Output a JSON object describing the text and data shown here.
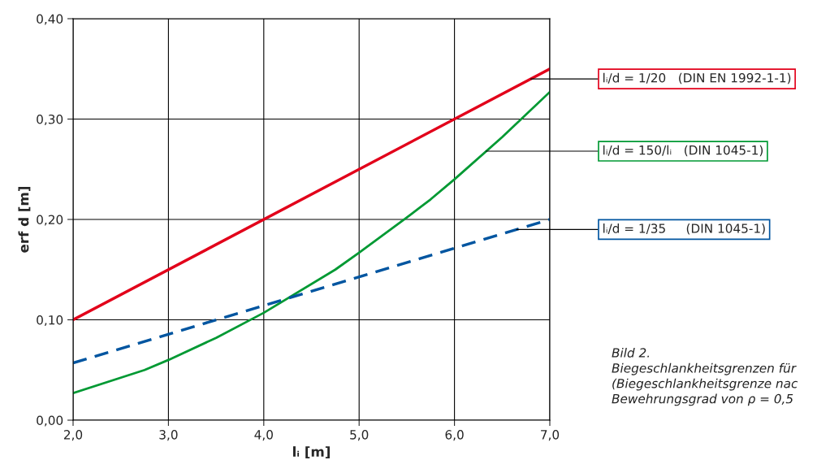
{
  "chart_data": {
    "type": "line",
    "xlabel": "lᵢ [m]",
    "ylabel": "erf d [m]",
    "xlim": [
      2.0,
      7.0
    ],
    "ylim": [
      0.0,
      0.4
    ],
    "xticks": [
      {
        "value": 2,
        "label": "2,0"
      },
      {
        "value": 3,
        "label": "3,0"
      },
      {
        "value": 4,
        "label": "4,0"
      },
      {
        "value": 5,
        "label": "5,0"
      },
      {
        "value": 6,
        "label": "6,0"
      },
      {
        "value": 7,
        "label": "7,0"
      }
    ],
    "yticks": [
      {
        "value": 0,
        "label": "0,00"
      },
      {
        "value": 0.1,
        "label": "0,10"
      },
      {
        "value": 0.2,
        "label": "0,20"
      },
      {
        "value": 0.3,
        "label": "0,30"
      },
      {
        "value": 0.4,
        "label": "0,40"
      }
    ],
    "grid": true,
    "series": [
      {
        "color": "#e2001a",
        "line_style": "solid",
        "x": [
          2.0,
          7.0
        ],
        "values": [
          0.1,
          0.35
        ]
      },
      {
        "color": "#009933",
        "line_style": "solid",
        "x": [
          2.0,
          2.75,
          3.0,
          3.5,
          4.0,
          4.75,
          5.0,
          5.5,
          5.75,
          6.0,
          6.5,
          7.0
        ],
        "values": [
          0.027,
          0.05,
          0.06,
          0.082,
          0.107,
          0.15,
          0.167,
          0.202,
          0.22,
          0.24,
          0.282,
          0.327
        ]
      },
      {
        "color": "#0055a0",
        "line_style": "dashed",
        "x": [
          2.0,
          7.0
        ],
        "values": [
          0.057,
          0.2
        ]
      }
    ],
    "annotations": [
      {
        "text": "lᵢ/d = 1/20   (DIN EN 1992-1-1)",
        "x": 6.8,
        "y": 0.34
      },
      {
        "text": "lᵢ/d = 150/lᵢ   (DIN 1045-1)",
        "x": 6.33,
        "y": 0.268
      },
      {
        "text": "lᵢ/d = 1/35     (DIN 1045-1)",
        "x": 6.65,
        "y": 0.19
      },
      "Bild 2.\nBiegeschlankheitsgrenzen für\n(Biegeschlankheitsgrenze nac\nBewehrungsgrad von ρ = 0,5"
    ]
  }
}
